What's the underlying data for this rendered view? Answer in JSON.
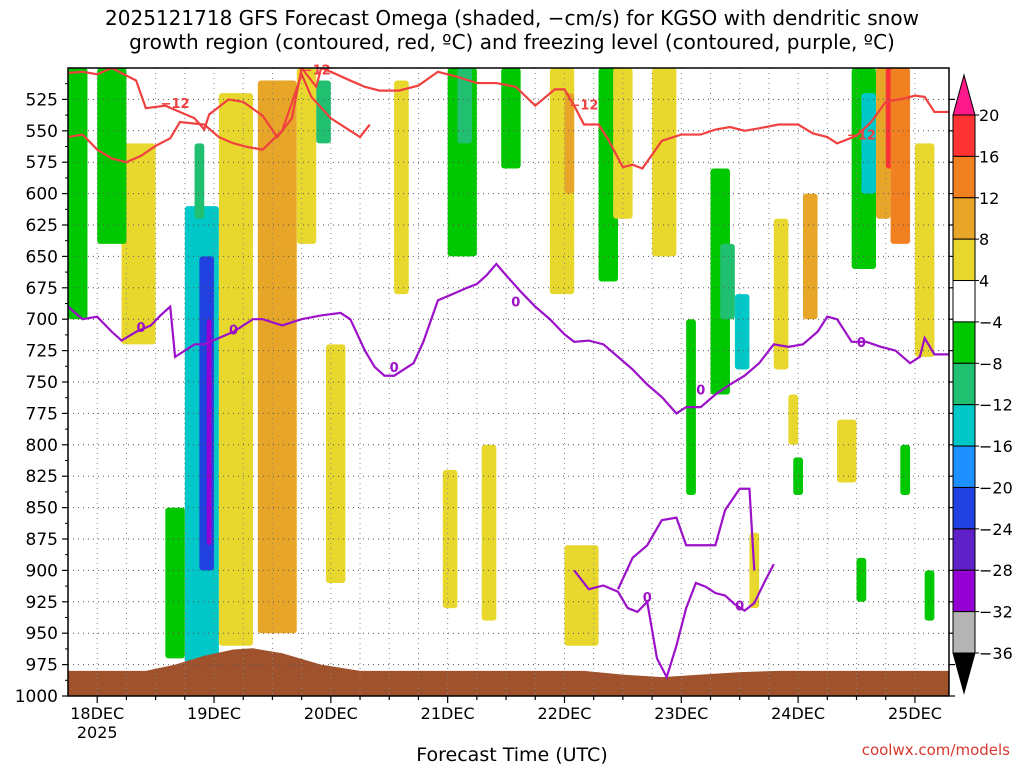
{
  "title_line1": "2025121718 GFS Forecast Omega (shaded, −cm/s) for KGSO with dendritic snow",
  "title_line2": "growth region (contoured, red, ºC) and freezing level (contoured, purple, ºC)",
  "credit": "coolwx.com/models",
  "chart_data": {
    "type": "heatmap",
    "title": "2025121718 GFS Forecast Omega (shaded, −cm/s) for KGSO with dendritic snow growth region (contoured, red, ºC) and freezing level (contoured, purple, ºC)",
    "xlabel": "Forecast Time (UTC)",
    "ylabel": "",
    "x_ticks": [
      {
        "t": 0,
        "label": "18DEC",
        "sub": "2025"
      },
      {
        "t": 24,
        "label": "19DEC",
        "sub": ""
      },
      {
        "t": 48,
        "label": "20DEC",
        "sub": ""
      },
      {
        "t": 72,
        "label": "21DEC",
        "sub": ""
      },
      {
        "t": 96,
        "label": "22DEC",
        "sub": ""
      },
      {
        "t": 120,
        "label": "23DEC",
        "sub": ""
      },
      {
        "t": 144,
        "label": "24DEC",
        "sub": ""
      },
      {
        "t": 168,
        "label": "25DEC",
        "sub": ""
      }
    ],
    "x_range_hours": [
      -6,
      175
    ],
    "y_ticks": [
      525,
      550,
      575,
      600,
      625,
      650,
      675,
      700,
      725,
      750,
      775,
      800,
      825,
      850,
      875,
      900,
      925,
      950,
      975,
      1000
    ],
    "y_range": [
      500,
      1000
    ],
    "colorbar": {
      "levels": [
        -36,
        -32,
        -28,
        -24,
        -20,
        -16,
        -12,
        -8,
        -4,
        4,
        8,
        12,
        16,
        20
      ],
      "labels": [
        "20",
        "16",
        "12",
        "8",
        "4",
        "−4",
        "−8",
        "−12",
        "−16",
        "−20",
        "−24",
        "−28",
        "−32",
        "−36"
      ],
      "colors": [
        "#ff1a8c",
        "#ff3333",
        "#f08020",
        "#e8a628",
        "#e8d82e",
        "#ffffff",
        "#00c800",
        "#20c070",
        "#00c8c8",
        "#1e90ff",
        "#2040e0",
        "#6020c8",
        "#9400d3",
        "#b4b4b4",
        "#000000"
      ]
    },
    "dgz_label": "−12",
    "dgz_upper_line": [
      [
        -6,
        504
      ],
      [
        -3,
        503
      ],
      [
        0,
        505
      ],
      [
        3,
        500
      ],
      [
        8,
        510
      ],
      [
        10,
        532
      ],
      [
        14,
        530
      ],
      [
        17,
        535
      ],
      [
        20,
        540
      ],
      [
        22,
        549
      ],
      [
        23,
        537
      ],
      [
        27,
        525
      ],
      [
        30,
        527
      ],
      [
        34,
        538
      ],
      [
        37,
        555
      ],
      [
        40,
        540
      ],
      [
        42,
        500
      ],
      [
        45,
        515
      ],
      [
        46,
        500
      ],
      [
        48,
        503
      ],
      [
        52,
        510
      ],
      [
        55,
        515
      ],
      [
        58,
        518
      ],
      [
        62,
        518
      ],
      [
        66,
        514
      ],
      [
        70,
        503
      ],
      [
        74,
        507
      ],
      [
        78,
        512
      ],
      [
        82,
        512
      ],
      [
        86,
        515
      ],
      [
        90,
        530
      ],
      [
        94,
        517
      ],
      [
        96,
        517
      ],
      [
        98,
        530
      ],
      [
        100,
        545
      ],
      [
        103,
        545
      ],
      [
        105,
        557
      ],
      [
        108,
        579
      ],
      [
        110,
        577
      ],
      [
        112,
        580
      ],
      [
        116,
        558
      ],
      [
        120,
        553
      ],
      [
        124,
        553
      ],
      [
        127,
        549
      ],
      [
        130,
        547
      ],
      [
        133,
        550
      ],
      [
        136,
        548
      ],
      [
        140,
        545
      ],
      [
        144,
        545
      ],
      [
        147,
        552
      ],
      [
        150,
        555
      ],
      [
        152,
        560
      ],
      [
        156,
        554
      ],
      [
        159,
        543
      ],
      [
        162,
        527
      ],
      [
        166,
        524
      ],
      [
        168,
        522
      ],
      [
        170,
        523
      ],
      [
        172,
        535
      ],
      [
        175,
        535
      ]
    ],
    "dgz_lower_line": [
      [
        -6,
        555
      ],
      [
        -3,
        553
      ],
      [
        0,
        565
      ],
      [
        3,
        572
      ],
      [
        6,
        575
      ],
      [
        9,
        570
      ],
      [
        12,
        562
      ],
      [
        15,
        556
      ],
      [
        17,
        543
      ],
      [
        22,
        545
      ],
      [
        25,
        555
      ],
      [
        28,
        560
      ],
      [
        31,
        563
      ],
      [
        34,
        565
      ],
      [
        38,
        550
      ],
      [
        42,
        505
      ],
      [
        44,
        523
      ],
      [
        48,
        540
      ],
      [
        52,
        550
      ],
      [
        54,
        555
      ],
      [
        56,
        545
      ]
    ],
    "freezing_level_main": [
      [
        -6,
        690
      ],
      [
        -3,
        700
      ],
      [
        0,
        698
      ],
      [
        3,
        710
      ],
      [
        5,
        717
      ],
      [
        8,
        710
      ],
      [
        11,
        705
      ],
      [
        13,
        697
      ],
      [
        15,
        690
      ],
      [
        16,
        730
      ],
      [
        20,
        720
      ],
      [
        22,
        720
      ],
      [
        25,
        715
      ],
      [
        28,
        710
      ],
      [
        32,
        700
      ],
      [
        34,
        700
      ],
      [
        38,
        705
      ],
      [
        42,
        700
      ],
      [
        46,
        697
      ],
      [
        50,
        695
      ],
      [
        52,
        700
      ],
      [
        55,
        725
      ],
      [
        57,
        738
      ],
      [
        59,
        745
      ],
      [
        61,
        745
      ],
      [
        63,
        740
      ],
      [
        65,
        735
      ],
      [
        67,
        718
      ],
      [
        70,
        685
      ],
      [
        73,
        680
      ],
      [
        76,
        675
      ],
      [
        78,
        672
      ],
      [
        80,
        665
      ],
      [
        82,
        656
      ],
      [
        84,
        665
      ],
      [
        87,
        678
      ],
      [
        90,
        690
      ],
      [
        93,
        700
      ],
      [
        96,
        712
      ],
      [
        98,
        718
      ],
      [
        101,
        717
      ],
      [
        104,
        720
      ],
      [
        107,
        730
      ],
      [
        110,
        740
      ],
      [
        113,
        752
      ],
      [
        116,
        762
      ],
      [
        119,
        775
      ],
      [
        121,
        770
      ],
      [
        124,
        770
      ],
      [
        127,
        760
      ],
      [
        130,
        752
      ],
      [
        133,
        745
      ],
      [
        136,
        735
      ],
      [
        139,
        720
      ],
      [
        142,
        722
      ],
      [
        145,
        720
      ],
      [
        148,
        710
      ],
      [
        150,
        698
      ],
      [
        152,
        700
      ],
      [
        155,
        718
      ],
      [
        158,
        718
      ],
      [
        161,
        722
      ],
      [
        164,
        725
      ],
      [
        167,
        735
      ],
      [
        169,
        730
      ],
      [
        170,
        715
      ],
      [
        172,
        728
      ],
      [
        175,
        728
      ]
    ],
    "freezing_level_low": [
      [
        98,
        900
      ],
      [
        101,
        915
      ],
      [
        104,
        912
      ],
      [
        107,
        917
      ],
      [
        109,
        930
      ],
      [
        111,
        933
      ],
      [
        113,
        925
      ],
      [
        115,
        970
      ],
      [
        117,
        985
      ],
      [
        119,
        960
      ],
      [
        121,
        930
      ],
      [
        123,
        910
      ],
      [
        125,
        913
      ],
      [
        127,
        918
      ],
      [
        129,
        920
      ],
      [
        131,
        927
      ],
      [
        133,
        932
      ],
      [
        135,
        926
      ],
      [
        137,
        910
      ],
      [
        139,
        895
      ]
    ],
    "freezing_level_low_top": [
      [
        107,
        915
      ],
      [
        110,
        890
      ],
      [
        113,
        880
      ],
      [
        116,
        860
      ],
      [
        119,
        858
      ],
      [
        121,
        880
      ],
      [
        124,
        880
      ],
      [
        127,
        880
      ],
      [
        129,
        852
      ],
      [
        132,
        835
      ],
      [
        134,
        835
      ],
      [
        135,
        900
      ]
    ],
    "omega_cells": [
      {
        "t0": 18,
        "t1": 25,
        "p0": 610,
        "p1": 975,
        "v": -14
      },
      {
        "t0": 21,
        "t1": 24,
        "p0": 650,
        "p1": 900,
        "v": -22
      },
      {
        "t0": 22.5,
        "t1": 23.5,
        "p0": 700,
        "p1": 880,
        "v": -30
      },
      {
        "t0": 20,
        "t1": 22,
        "p0": 560,
        "p1": 620,
        "v": -9
      },
      {
        "t0": 14,
        "t1": 18,
        "p0": 850,
        "p1": 970,
        "v": -6
      },
      {
        "t0": 25,
        "t1": 32,
        "p0": 520,
        "p1": 960,
        "v": 5
      },
      {
        "t0": 33,
        "t1": 41,
        "p0": 510,
        "p1": 950,
        "v": 8
      },
      {
        "t0": 36,
        "t1": 39,
        "p0": 680,
        "p1": 770,
        "v": 11
      },
      {
        "t0": 41,
        "t1": 45,
        "p0": 500,
        "p1": 640,
        "v": 5
      },
      {
        "t0": 47,
        "t1": 51,
        "p0": 720,
        "p1": 910,
        "v": 7
      },
      {
        "t0": 5,
        "t1": 12,
        "p0": 560,
        "p1": 720,
        "v": 5
      },
      {
        "t0": -6,
        "t1": -2,
        "p0": 500,
        "p1": 700,
        "v": -6
      },
      {
        "t0": 0,
        "t1": 6,
        "p0": 500,
        "p1": 640,
        "v": -6
      },
      {
        "t0": 45,
        "t1": 48,
        "p0": 510,
        "p1": 560,
        "v": -10
      },
      {
        "t0": 61,
        "t1": 64,
        "p0": 510,
        "p1": 680,
        "v": 5
      },
      {
        "t0": 72,
        "t1": 78,
        "p0": 500,
        "p1": 650,
        "v": -6
      },
      {
        "t0": 74,
        "t1": 77,
        "p0": 500,
        "p1": 560,
        "v": -12
      },
      {
        "t0": 83,
        "t1": 87,
        "p0": 500,
        "p1": 580,
        "v": -6
      },
      {
        "t0": 93,
        "t1": 98,
        "p0": 500,
        "p1": 680,
        "v": 6
      },
      {
        "t0": 96,
        "t1": 98,
        "p0": 520,
        "p1": 600,
        "v": 10
      },
      {
        "t0": 103,
        "t1": 107,
        "p0": 500,
        "p1": 670,
        "v": -6
      },
      {
        "t0": 106,
        "t1": 110,
        "p0": 500,
        "p1": 620,
        "v": 5
      },
      {
        "t0": 114,
        "t1": 119,
        "p0": 500,
        "p1": 650,
        "v": 5
      },
      {
        "t0": 126,
        "t1": 130,
        "p0": 580,
        "p1": 760,
        "v": -6
      },
      {
        "t0": 128,
        "t1": 131,
        "p0": 640,
        "p1": 700,
        "v": -10
      },
      {
        "t0": 131,
        "t1": 134,
        "p0": 680,
        "p1": 740,
        "v": -14
      },
      {
        "t0": 139,
        "t1": 142,
        "p0": 620,
        "p1": 740,
        "v": 5
      },
      {
        "t0": 145,
        "t1": 148,
        "p0": 600,
        "p1": 700,
        "v": 10
      },
      {
        "t0": 155,
        "t1": 160,
        "p0": 500,
        "p1": 660,
        "v": -6
      },
      {
        "t0": 157,
        "t1": 160,
        "p0": 520,
        "p1": 600,
        "v": -14
      },
      {
        "t0": 160,
        "t1": 163,
        "p0": 500,
        "p1": 620,
        "v": 8
      },
      {
        "t0": 162,
        "t1": 164,
        "p0": 500,
        "p1": 580,
        "v": 18
      },
      {
        "t0": 163,
        "t1": 167,
        "p0": 500,
        "p1": 640,
        "v": 12
      },
      {
        "t0": 168,
        "t1": 172,
        "p0": 560,
        "p1": 730,
        "v": 5
      },
      {
        "t0": 152,
        "t1": 156,
        "p0": 780,
        "p1": 830,
        "v": 5
      },
      {
        "t0": 156,
        "t1": 158,
        "p0": 890,
        "p1": 925,
        "v": -6
      },
      {
        "t0": 165,
        "t1": 167,
        "p0": 800,
        "p1": 840,
        "v": -6
      },
      {
        "t0": 170,
        "t1": 172,
        "p0": 900,
        "p1": 940,
        "v": -6
      },
      {
        "t0": 96,
        "t1": 103,
        "p0": 880,
        "p1": 960,
        "v": 5
      },
      {
        "t0": 79,
        "t1": 82,
        "p0": 800,
        "p1": 940,
        "v": 5
      },
      {
        "t0": 71,
        "t1": 74,
        "p0": 820,
        "p1": 930,
        "v": 5
      },
      {
        "t0": 121,
        "t1": 123,
        "p0": 700,
        "p1": 840,
        "v": -6
      },
      {
        "t0": 134,
        "t1": 136,
        "p0": 870,
        "p1": 930,
        "v": 5
      },
      {
        "t0": 142,
        "t1": 144,
        "p0": 760,
        "p1": 800,
        "v": 5
      },
      {
        "t0": 143,
        "t1": 145,
        "p0": 810,
        "p1": 840,
        "v": -6
      },
      {
        "t0": 26,
        "t1": 28,
        "p0": 900,
        "p1": 940,
        "v": 5
      }
    ],
    "terrain": [
      [
        -6,
        980
      ],
      [
        10,
        980
      ],
      [
        16,
        975
      ],
      [
        22,
        968
      ],
      [
        28,
        963
      ],
      [
        32,
        962
      ],
      [
        38,
        966
      ],
      [
        46,
        975
      ],
      [
        54,
        980
      ],
      [
        70,
        980
      ],
      [
        90,
        980
      ],
      [
        100,
        980
      ],
      [
        108,
        983
      ],
      [
        116,
        985
      ],
      [
        124,
        983
      ],
      [
        132,
        981
      ],
      [
        140,
        980
      ],
      [
        175,
        980
      ]
    ]
  }
}
